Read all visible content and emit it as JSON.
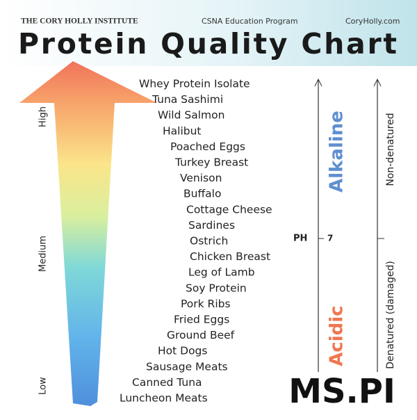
{
  "header": {
    "institute": "THE CORY HOLLY INSTITUTE",
    "program": "CSNA Education Program",
    "website": "CoryHolly.com",
    "title": "Protein Quality Chart"
  },
  "quality_axis": {
    "high": "High",
    "medium": "Medium",
    "low": "Low"
  },
  "foods": [
    "Whey Protein Isolate",
    "Tuna Sashimi",
    "Wild Salmon",
    "Halibut",
    "Poached Eggs",
    "Turkey Breast",
    "Venison",
    "Buffalo",
    "Cottage Cheese",
    "Sardines",
    "Ostrich",
    "Chicken Breast",
    "Leg of Lamb",
    "Soy Protein",
    "Pork Ribs",
    "Fried Eggs",
    "Ground Beef",
    "Hot Dogs",
    "Sausage Meats",
    "Canned Tuna",
    "Luncheon Meats"
  ],
  "ph_axis": {
    "alkaline": "Alkaline",
    "acidic": "Acidic",
    "ph": "PH",
    "neutral": "7"
  },
  "denature_axis": {
    "top": "Non-denatured",
    "bottom": "Denatured (damaged)"
  },
  "logo": "MS.PI"
}
